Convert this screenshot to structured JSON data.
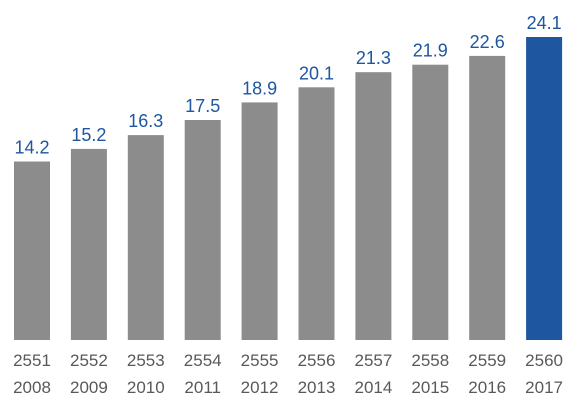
{
  "chart_data": {
    "type": "bar",
    "categories": [
      [
        "2551",
        "2008"
      ],
      [
        "2552",
        "2009"
      ],
      [
        "2553",
        "2010"
      ],
      [
        "2554",
        "2011"
      ],
      [
        "2555",
        "2012"
      ],
      [
        "2556",
        "2013"
      ],
      [
        "2557",
        "2014"
      ],
      [
        "2558",
        "2015"
      ],
      [
        "2559",
        "2016"
      ],
      [
        "2560",
        "2017"
      ]
    ],
    "values": [
      14.2,
      15.2,
      16.3,
      17.5,
      18.9,
      20.1,
      21.3,
      21.9,
      22.6,
      24.1
    ],
    "value_labels": [
      "14.2",
      "15.2",
      "16.3",
      "17.5",
      "18.9",
      "20.1",
      "21.3",
      "21.9",
      "22.6",
      "24.1"
    ],
    "title": "",
    "xlabel": "",
    "ylabel": "",
    "ylim": [
      0,
      24.1
    ],
    "grid": false,
    "legend": "none",
    "highlight_index": 9
  },
  "colors": {
    "bar": "#8c8c8c",
    "bar_highlight": "#1e56a0",
    "value_label": "#1e56a0",
    "tick_label": "#595959"
  }
}
